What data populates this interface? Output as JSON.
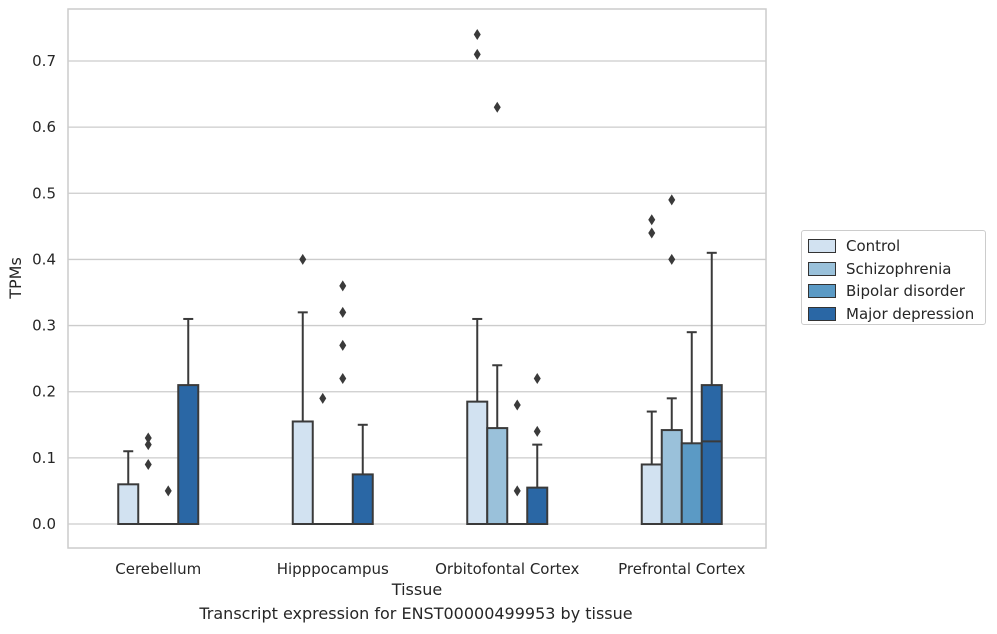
{
  "chart_data": {
    "type": "box",
    "title": "",
    "caption": "Transcript expression for ENST00000499953 by tissue",
    "xlabel": "Tissue",
    "ylabel": "TPMs",
    "ylim": [
      -0.036,
      0.78
    ],
    "yticks": [
      "0.0",
      "0.1",
      "0.2",
      "0.3",
      "0.4",
      "0.5",
      "0.6",
      "0.7"
    ],
    "grid": "horizontal",
    "legend_position": "right",
    "categories": [
      "Cerebellum",
      "Hipppocampus",
      "Orbitofontal Cortex",
      "Prefrontal Cortex"
    ],
    "series": [
      {
        "name": "Control",
        "color": "#d2e2f1",
        "boxes": [
          {
            "q1": 0.0,
            "median": 0.0,
            "q3": 0.06,
            "whisker_low": 0.0,
            "whisker_high": 0.11,
            "outliers": []
          },
          {
            "q1": 0.0,
            "median": 0.0,
            "q3": 0.155,
            "whisker_low": 0.0,
            "whisker_high": 0.32,
            "outliers": [
              0.4
            ]
          },
          {
            "q1": 0.0,
            "median": 0.0,
            "q3": 0.185,
            "whisker_low": 0.0,
            "whisker_high": 0.31,
            "outliers": [
              0.71,
              0.74
            ]
          },
          {
            "q1": 0.0,
            "median": 0.0,
            "q3": 0.09,
            "whisker_low": 0.0,
            "whisker_high": 0.17,
            "outliers": [
              0.44,
              0.46
            ]
          }
        ]
      },
      {
        "name": "Schizophrenia",
        "color": "#9ac1da",
        "boxes": [
          {
            "q1": 0.0,
            "median": 0.0,
            "q3": 0.0,
            "whisker_low": 0.0,
            "whisker_high": 0.0,
            "outliers": [
              0.09,
              0.12,
              0.13
            ]
          },
          {
            "q1": 0.0,
            "median": 0.0,
            "q3": 0.0,
            "whisker_low": 0.0,
            "whisker_high": 0.0,
            "outliers": [
              0.19
            ]
          },
          {
            "q1": 0.0,
            "median": 0.0,
            "q3": 0.145,
            "whisker_low": 0.0,
            "whisker_high": 0.24,
            "outliers": [
              0.63
            ]
          },
          {
            "q1": 0.0,
            "median": 0.0,
            "q3": 0.142,
            "whisker_low": 0.0,
            "whisker_high": 0.19,
            "outliers": [
              0.4,
              0.49
            ]
          }
        ]
      },
      {
        "name": "Bipolar disorder",
        "color": "#5b9ac5",
        "boxes": [
          {
            "q1": 0.0,
            "median": 0.0,
            "q3": 0.0,
            "whisker_low": 0.0,
            "whisker_high": 0.0,
            "outliers": [
              0.05
            ]
          },
          {
            "q1": 0.0,
            "median": 0.0,
            "q3": 0.0,
            "whisker_low": 0.0,
            "whisker_high": 0.0,
            "outliers": [
              0.22,
              0.27,
              0.32,
              0.36
            ]
          },
          {
            "q1": 0.0,
            "median": 0.0,
            "q3": 0.0,
            "whisker_low": 0.0,
            "whisker_high": 0.0,
            "outliers": [
              0.05,
              0.18
            ]
          },
          {
            "q1": 0.0,
            "median": 0.0,
            "q3": 0.122,
            "whisker_low": 0.0,
            "whisker_high": 0.29,
            "outliers": []
          }
        ]
      },
      {
        "name": "Major depression",
        "color": "#2a67a5",
        "boxes": [
          {
            "q1": 0.0,
            "median": 0.0,
            "q3": 0.21,
            "whisker_low": 0.0,
            "whisker_high": 0.31,
            "outliers": []
          },
          {
            "q1": 0.0,
            "median": 0.0,
            "q3": 0.075,
            "whisker_low": 0.0,
            "whisker_high": 0.15,
            "outliers": []
          },
          {
            "q1": 0.0,
            "median": 0.0,
            "q3": 0.055,
            "whisker_low": 0.0,
            "whisker_high": 0.12,
            "outliers": [
              0.14,
              0.22
            ]
          },
          {
            "q1": 0.0,
            "median": 0.125,
            "q3": 0.21,
            "whisker_low": 0.0,
            "whisker_high": 0.41,
            "outliers": []
          }
        ]
      }
    ]
  }
}
